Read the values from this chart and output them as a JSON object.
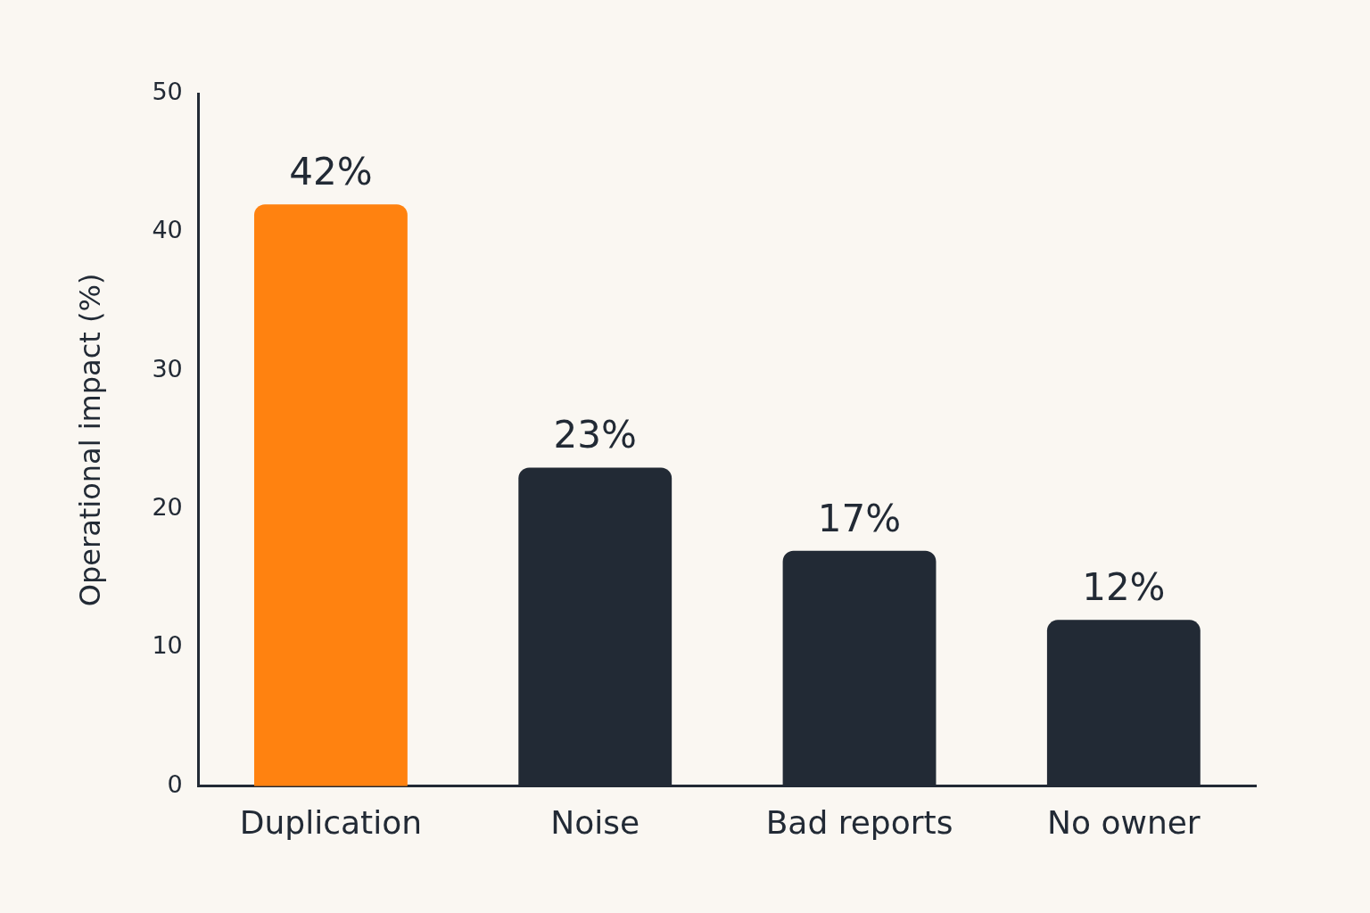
{
  "chart_data": {
    "type": "bar",
    "ylabel": "Operational impact (%)",
    "categories": [
      "Duplication",
      "Noise",
      "Bad reports",
      "No owner"
    ],
    "values": [
      42,
      23,
      17,
      12
    ],
    "colors": [
      "#ff8210",
      "#222a35",
      "#222a35",
      "#222a35"
    ],
    "value_labels": [
      "42%",
      "23%",
      "17%",
      "12%"
    ],
    "ylim": [
      0,
      50
    ],
    "yticks": [
      0,
      10,
      20,
      30,
      40,
      50
    ],
    "grid": false,
    "legend": false
  }
}
